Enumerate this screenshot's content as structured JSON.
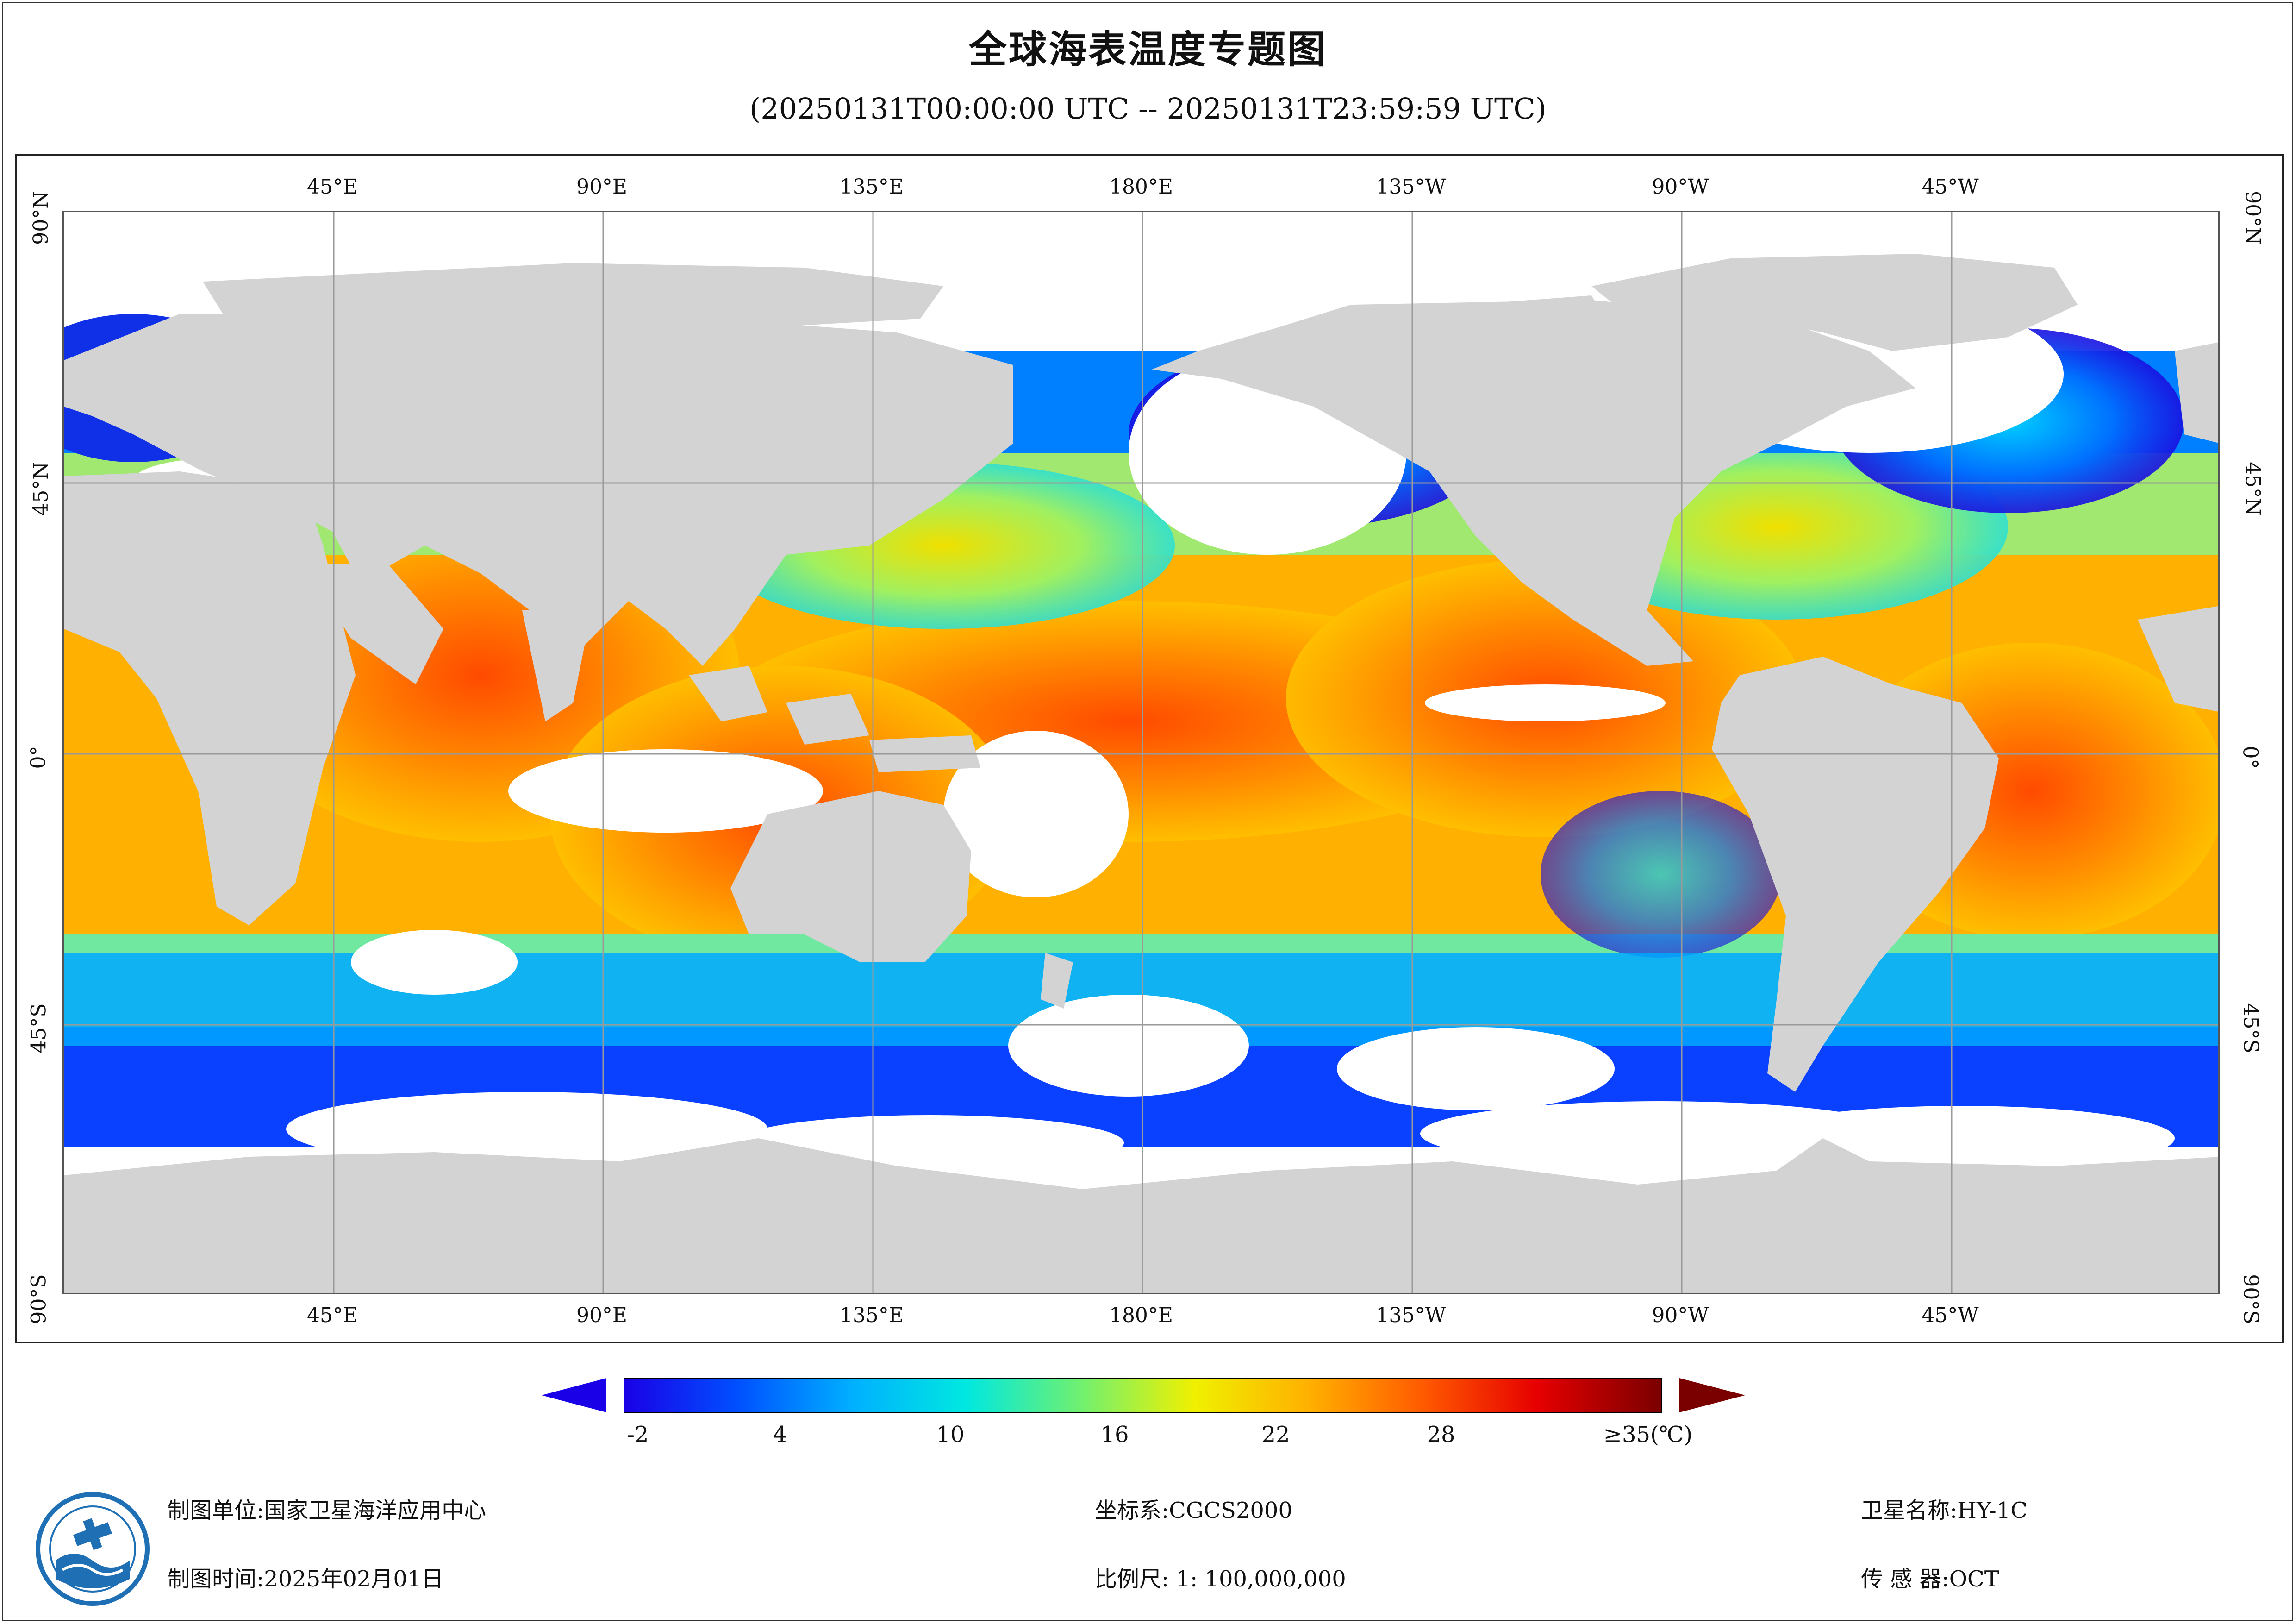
{
  "header": {
    "title": "全球海表温度专题图",
    "subtitle": "(20250131T00:00:00 UTC -- 20250131T23:59:59 UTC)"
  },
  "map": {
    "lon_labels": [
      "45°E",
      "90°E",
      "135°E",
      "180°E",
      "135°W",
      "90°W",
      "45°W"
    ],
    "lat_labels": [
      "90°N",
      "45°N",
      "0°",
      "45°S",
      "90°S"
    ],
    "colors": {
      "land": "#d3d3d4",
      "cloud": "#ffffff",
      "grid": "#9a9a9a"
    }
  },
  "colorbar": {
    "tick_labels": [
      "-2",
      "4",
      "10",
      "16",
      "22",
      "28",
      "≥35(℃)"
    ],
    "stops": [
      "#1a00e6",
      "#0050ff",
      "#00b0ff",
      "#00e8e0",
      "#70f070",
      "#f0f000",
      "#ffb000",
      "#ff5a00",
      "#e60000",
      "#7a0000"
    ],
    "under_color": "#1a00e6",
    "over_color": "#7a0000"
  },
  "footer": {
    "unit": "制图单位:国家卫星海洋应用中心",
    "time": "制图时间:2025年02月01日",
    "crs": "坐标系:CGCS2000",
    "scale": "比例尺: 1: 100,000,000",
    "satellite": "卫星名称:HY-1C",
    "sensor": "传 感 器:OCT"
  }
}
